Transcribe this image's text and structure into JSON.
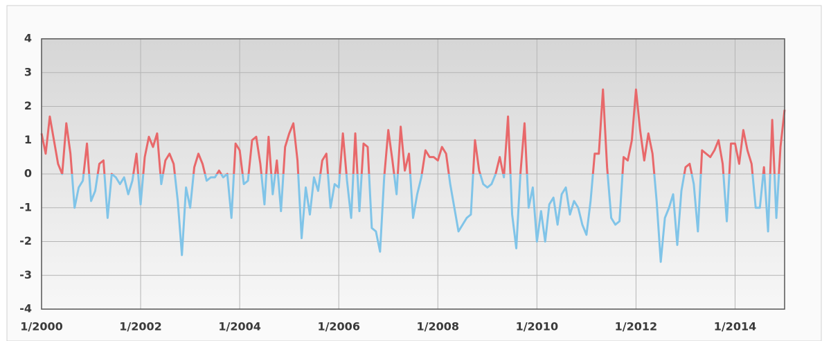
{
  "chart_data": {
    "type": "line",
    "x": [
      "1/2000",
      "2/2000",
      "3/2000",
      "4/2000",
      "5/2000",
      "6/2000",
      "7/2000",
      "8/2000",
      "9/2000",
      "10/2000",
      "11/2000",
      "12/2000",
      "1/2001",
      "2/2001",
      "3/2001",
      "4/2001",
      "5/2001",
      "6/2001",
      "7/2001",
      "8/2001",
      "9/2001",
      "10/2001",
      "11/2001",
      "12/2001",
      "1/2002",
      "2/2002",
      "3/2002",
      "4/2002",
      "5/2002",
      "6/2002",
      "7/2002",
      "8/2002",
      "9/2002",
      "10/2002",
      "11/2002",
      "12/2002",
      "1/2003",
      "2/2003",
      "3/2003",
      "4/2003",
      "5/2003",
      "6/2003",
      "7/2003",
      "8/2003",
      "9/2003",
      "10/2003",
      "11/2003",
      "12/2003",
      "1/2004",
      "2/2004",
      "3/2004",
      "4/2004",
      "5/2004",
      "6/2004",
      "7/2004",
      "8/2004",
      "9/2004",
      "10/2004",
      "11/2004",
      "12/2004",
      "1/2005",
      "2/2005",
      "3/2005",
      "4/2005",
      "5/2005",
      "6/2005",
      "7/2005",
      "8/2005",
      "9/2005",
      "10/2005",
      "11/2005",
      "12/2005",
      "1/2006",
      "2/2006",
      "3/2006",
      "4/2006",
      "5/2006",
      "6/2006",
      "7/2006",
      "8/2006",
      "9/2006",
      "10/2006",
      "11/2006",
      "12/2006",
      "1/2007",
      "2/2007",
      "3/2007",
      "4/2007",
      "5/2007",
      "6/2007",
      "7/2007",
      "8/2007",
      "9/2007",
      "10/2007",
      "11/2007",
      "12/2007",
      "1/2008",
      "2/2008",
      "3/2008",
      "4/2008",
      "5/2008",
      "6/2008",
      "7/2008",
      "8/2008",
      "9/2008",
      "10/2008",
      "11/2008",
      "12/2008",
      "1/2009",
      "2/2009",
      "3/2009",
      "4/2009",
      "5/2009",
      "6/2009",
      "7/2009",
      "8/2009",
      "9/2009",
      "10/2009",
      "11/2009",
      "12/2009",
      "1/2010",
      "2/2010",
      "3/2010",
      "4/2010",
      "5/2010",
      "6/2010",
      "7/2010",
      "8/2010",
      "9/2010",
      "10/2010",
      "11/2010",
      "12/2010",
      "1/2011",
      "2/2011",
      "3/2011",
      "4/2011",
      "5/2011",
      "6/2011",
      "7/2011",
      "8/2011",
      "9/2011",
      "10/2011",
      "11/2011",
      "12/2011",
      "1/2012",
      "2/2012",
      "3/2012",
      "4/2012",
      "5/2012",
      "6/2012",
      "7/2012",
      "8/2012",
      "9/2012",
      "10/2012",
      "11/2012",
      "12/2012",
      "1/2013",
      "2/2013",
      "3/2013",
      "4/2013",
      "5/2013",
      "6/2013",
      "7/2013",
      "8/2013",
      "9/2013",
      "10/2013",
      "11/2013",
      "12/2013",
      "1/2014",
      "2/2014",
      "3/2014",
      "4/2014",
      "5/2014",
      "6/2014",
      "7/2014",
      "8/2014",
      "9/2014",
      "10/2014",
      "11/2014",
      "12/2014",
      "1/2015"
    ],
    "values": [
      1.2,
      0.6,
      1.7,
      1.0,
      0.3,
      0.0,
      1.5,
      0.6,
      -1.0,
      -0.4,
      -0.2,
      0.9,
      -0.8,
      -0.5,
      0.3,
      0.4,
      -1.3,
      0.0,
      -0.1,
      -0.3,
      -0.1,
      -0.6,
      -0.2,
      0.6,
      -0.9,
      0.5,
      1.1,
      0.8,
      1.2,
      -0.3,
      0.4,
      0.6,
      0.3,
      -0.8,
      -2.4,
      -0.4,
      -1.0,
      0.2,
      0.6,
      0.3,
      -0.2,
      -0.1,
      -0.1,
      0.1,
      -0.1,
      0.0,
      -1.3,
      0.9,
      0.7,
      -0.3,
      -0.2,
      1.0,
      1.1,
      0.3,
      -0.9,
      1.1,
      -0.6,
      0.4,
      -1.1,
      0.8,
      1.2,
      1.5,
      0.4,
      -1.9,
      -0.4,
      -1.2,
      -0.1,
      -0.5,
      0.4,
      0.6,
      -1.0,
      -0.3,
      -0.4,
      1.2,
      -0.2,
      -1.3,
      1.2,
      -1.1,
      0.9,
      0.8,
      -1.6,
      -1.7,
      -2.3,
      -0.1,
      1.3,
      0.4,
      -0.6,
      1.4,
      0.1,
      0.6,
      -1.3,
      -0.6,
      -0.1,
      0.7,
      0.5,
      0.5,
      0.4,
      0.8,
      0.6,
      -0.3,
      -1.0,
      -1.7,
      -1.5,
      -1.3,
      -1.2,
      1.0,
      0.1,
      -0.3,
      -0.4,
      -0.3,
      0.0,
      0.5,
      -0.1,
      1.7,
      -1.2,
      -2.2,
      0.0,
      1.5,
      -1.0,
      -0.4,
      -2.0,
      -1.1,
      -2.0,
      -0.9,
      -0.7,
      -1.5,
      -0.6,
      -0.4,
      -1.2,
      -0.8,
      -1.0,
      -1.5,
      -1.8,
      -0.8,
      0.6,
      0.6,
      2.5,
      0.2,
      -1.3,
      -1.5,
      -1.4,
      0.5,
      0.4,
      1.0,
      2.5,
      1.3,
      0.4,
      1.2,
      0.6,
      -0.8,
      -2.6,
      -1.3,
      -1.0,
      -0.6,
      -2.1,
      -0.5,
      0.2,
      0.3,
      -0.3,
      -1.7,
      0.7,
      0.6,
      0.5,
      0.7,
      1.0,
      0.3,
      -1.4,
      0.9,
      0.9,
      0.3,
      1.3,
      0.7,
      0.3,
      -1.0,
      -1.0,
      0.2,
      -1.7,
      1.6,
      -1.3,
      0.8,
      1.9
    ],
    "positive_color": "#e8686a",
    "negative_color": "#80c4e8",
    "ylim": [
      -4,
      4
    ],
    "yticks": [
      -4,
      -3,
      -2,
      -1,
      0,
      1,
      2,
      3,
      4
    ],
    "xticks": [
      "1/2000",
      "1/2002",
      "1/2004",
      "1/2006",
      "1/2008",
      "1/2010",
      "1/2012",
      "1/2014"
    ],
    "grid": true
  }
}
